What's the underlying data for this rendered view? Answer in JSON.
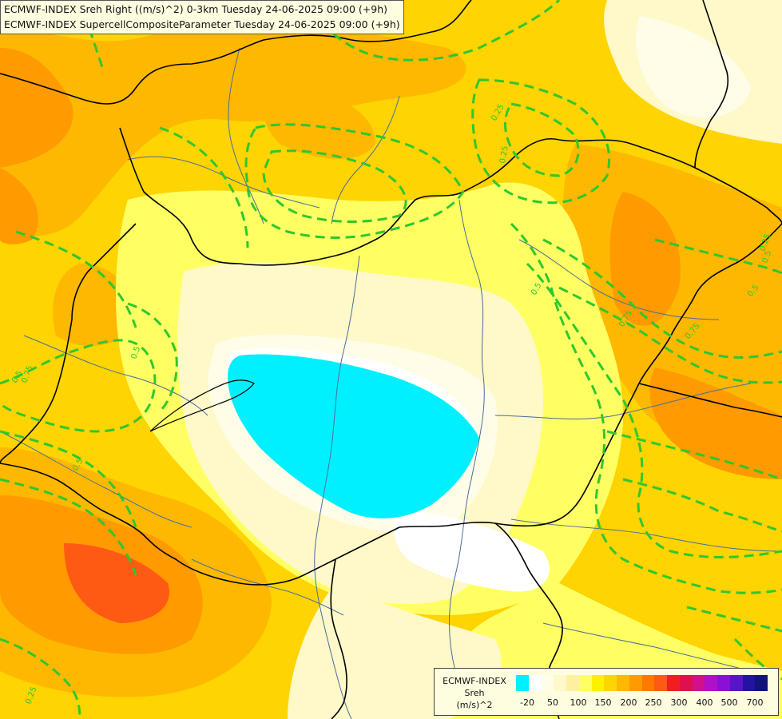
{
  "header": {
    "line1": "ECMWF-INDEX Sreh Right ((m/s)^2) 0-3km Tuesday 24-06-2025 09:00 (+9h)",
    "line2": "ECMWF-INDEX SupercellCompositeParameter Tuesday 24-06-2025 09:00 (+9h)"
  },
  "legend": {
    "title": "ECMWF-INDEX",
    "variable": "Sreh",
    "unit": "(m/s)^2",
    "colors": [
      "#00f0ff",
      "#ffffff",
      "#fffce8",
      "#fff8c8",
      "#fff0a0",
      "#ffff64",
      "#fff000",
      "#ffd400",
      "#ffb800",
      "#ff9a00",
      "#ff7800",
      "#ff5a14",
      "#f01e1e",
      "#e0104c",
      "#d0108c",
      "#b010c8",
      "#8a10d8",
      "#5a14c8",
      "#2014a0",
      "#101478"
    ],
    "ticks": [
      "-20",
      "50",
      "100",
      "150",
      "200",
      "250",
      "300",
      "400",
      "500",
      "700"
    ]
  },
  "contour_labels": [
    "0.25",
    "0.25",
    "0.25",
    "0.5",
    "0.5",
    "0.5",
    "0.5",
    "0.75",
    "0.75",
    "0.75",
    "0.5",
    "0.5",
    "0.25"
  ],
  "colors": {
    "contour": "#2ec82e",
    "border": "#000000",
    "river": "#4a6e9a"
  }
}
